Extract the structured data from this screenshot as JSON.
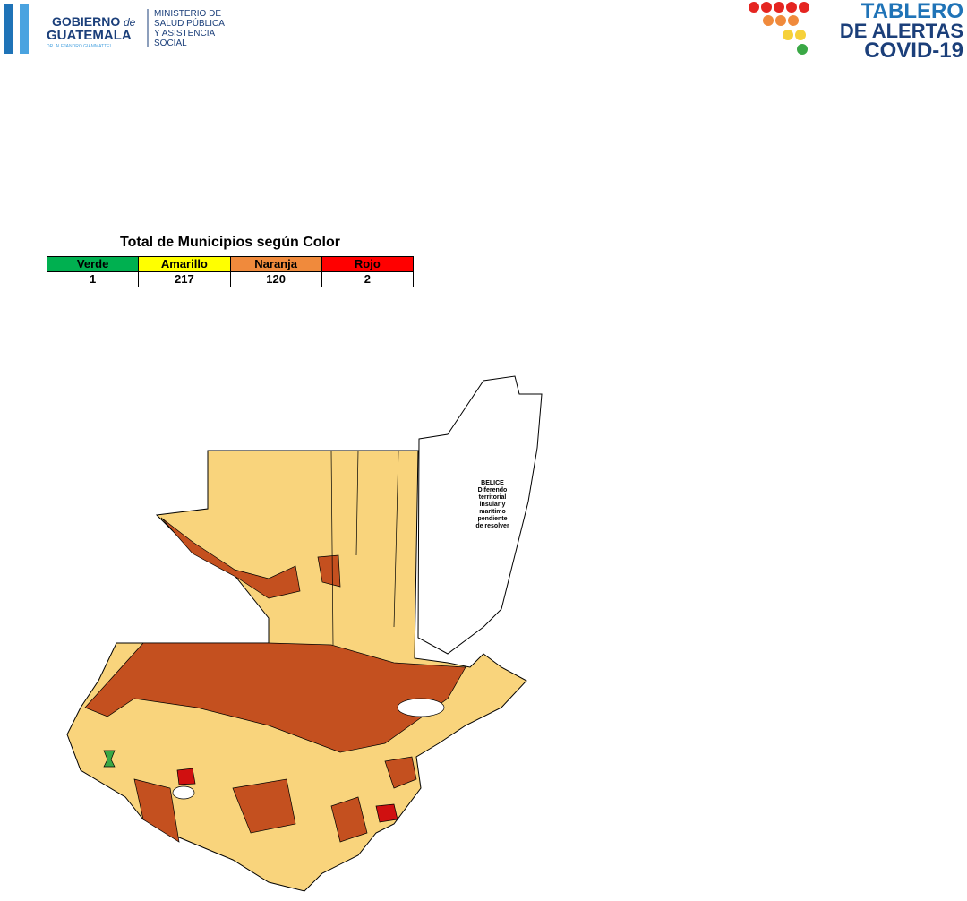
{
  "header": {
    "government": {
      "line1": "GOBIERNO",
      "de": "de",
      "line2": "GUATEMALA",
      "president": "DR. ALEJANDRO GIAMMATTEI"
    },
    "ministry": [
      "MINISTERIO DE",
      "SALUD PÚBLICA",
      "Y ASISTENCIA",
      "SOCIAL"
    ],
    "dashboard": [
      "TABLERO",
      "DE ALERTAS",
      "COVID-19"
    ]
  },
  "table": {
    "title": "Total de Municipios según Color",
    "columns": [
      {
        "label": "Verde",
        "color": "#00b050",
        "count": "1"
      },
      {
        "label": "Amarillo",
        "color": "#ffff00",
        "count": "217"
      },
      {
        "label": "Naranja",
        "color": "#f08a3c",
        "count": "120"
      },
      {
        "label": "Rojo",
        "color": "#ff0000",
        "count": "2"
      }
    ]
  },
  "map": {
    "label": [
      "BELICE",
      "Diferendo",
      "territorial",
      "insular y",
      "marítimo",
      "pendiente",
      "de resolver"
    ]
  }
}
